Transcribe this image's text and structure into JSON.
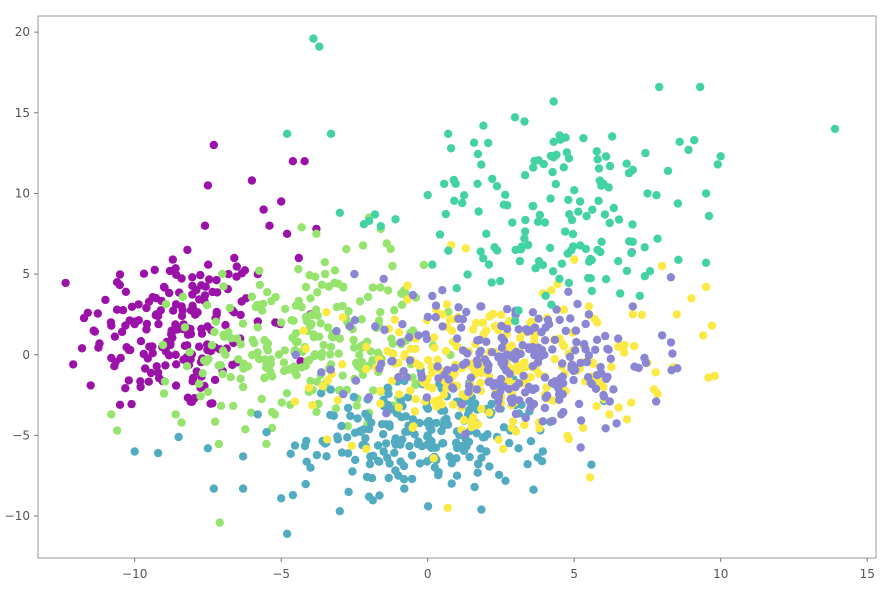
{
  "chart_data": {
    "type": "scatter",
    "title": "",
    "xlabel": "",
    "ylabel": "",
    "xlim": [
      -13.3,
      15.3
    ],
    "ylim": [
      -12.6,
      21.0
    ],
    "grid": false,
    "legend": "none",
    "x_ticks": [
      -10,
      -5,
      0,
      5,
      10,
      15
    ],
    "y_ticks": [
      -10,
      -5,
      0,
      5,
      10,
      15,
      20
    ],
    "x_tick_labels": [
      "−10",
      "−5",
      "0",
      "5",
      "10",
      "15"
    ],
    "y_tick_labels": [
      "−10",
      "−5",
      "0",
      "5",
      "10",
      "15",
      "20"
    ],
    "series": [
      {
        "color": "#9b12a8",
        "center": [
          -8.5,
          1.5
        ],
        "spread": [
          1.5,
          2.6
        ],
        "count": 200,
        "points": [
          [
            -12.1,
            -0.6
          ],
          [
            -11.8,
            0.4
          ],
          [
            -11.6,
            2.6
          ],
          [
            -11.4,
            1.5
          ],
          [
            -11.2,
            0.7
          ],
          [
            -11.0,
            3.4
          ],
          [
            -10.8,
            1.8
          ],
          [
            -10.6,
            4.5
          ],
          [
            -10.3,
            3.9
          ],
          [
            -10.2,
            0.3
          ],
          [
            -10.0,
            1.9
          ],
          [
            -9.8,
            -2.0
          ],
          [
            -9.5,
            0.5
          ],
          [
            -9.2,
            2.4
          ],
          [
            -9.0,
            4.2
          ],
          [
            -8.8,
            5.2
          ],
          [
            -8.6,
            0.0
          ],
          [
            -8.4,
            3.0
          ],
          [
            -8.2,
            6.5
          ],
          [
            -8.0,
            2.8
          ],
          [
            -7.9,
            4.0
          ],
          [
            -7.6,
            8.0
          ],
          [
            -7.5,
            10.5
          ],
          [
            -7.3,
            13.0
          ],
          [
            -7.2,
            2.5
          ],
          [
            -7.0,
            -1.0
          ],
          [
            -6.8,
            5.0
          ],
          [
            -6.6,
            6.0
          ],
          [
            -6.4,
            1.0
          ],
          [
            -6.2,
            3.5
          ],
          [
            -6.0,
            10.8
          ],
          [
            -5.8,
            5.0
          ],
          [
            -5.6,
            9.0
          ],
          [
            -5.4,
            8.0
          ],
          [
            -5.2,
            2.0
          ],
          [
            -5.0,
            9.5
          ],
          [
            -4.8,
            7.5
          ],
          [
            -4.6,
            12.0
          ],
          [
            -4.4,
            6.0
          ],
          [
            -4.2,
            12.0
          ],
          [
            -4.0,
            2.5
          ],
          [
            -3.8,
            7.8
          ],
          [
            -10.5,
            -3.1
          ],
          [
            -11.5,
            -1.9
          ],
          [
            -9.2,
            -1.1
          ],
          [
            -8.9,
            0.8
          ],
          [
            -8.1,
            1.6
          ],
          [
            -7.8,
            0.5
          ],
          [
            -9.6,
            2.9
          ],
          [
            -10.8,
            -0.2
          ]
        ]
      },
      {
        "color": "#96e46d",
        "center": [
          -4.0,
          0.5
        ],
        "spread": [
          2.0,
          2.6
        ],
        "count": 260,
        "points": [
          [
            -10.8,
            -3.7
          ],
          [
            -10.6,
            -4.7
          ],
          [
            -9.0,
            -2.4
          ],
          [
            -8.6,
            -3.7
          ],
          [
            -8.4,
            -4.2
          ],
          [
            -7.5,
            -2.3
          ],
          [
            -7.0,
            -1.2
          ],
          [
            -6.5,
            1.0
          ],
          [
            -6.0,
            3.6
          ],
          [
            -5.5,
            -0.5
          ],
          [
            -5.0,
            2.0
          ],
          [
            -4.5,
            0.8
          ],
          [
            -4.0,
            3.5
          ],
          [
            -3.5,
            5.0
          ],
          [
            -3.0,
            1.0
          ],
          [
            -2.5,
            -1.5
          ],
          [
            -2.0,
            8.5
          ],
          [
            -1.6,
            7.8
          ],
          [
            -1.2,
            5.5
          ],
          [
            -0.8,
            4.0
          ],
          [
            -0.5,
            1.5
          ],
          [
            -3.8,
            7.5
          ],
          [
            -4.3,
            7.9
          ],
          [
            -2.2,
            0.6
          ],
          [
            -6.3,
            -2.0
          ],
          [
            -5.8,
            1.7
          ],
          [
            -4.9,
            -1.0
          ],
          [
            -3.3,
            -0.6
          ],
          [
            -2.7,
            2.7
          ],
          [
            -1.4,
            6.9
          ],
          [
            -0.9,
            3.8
          ],
          [
            -6.9,
            0.0
          ],
          [
            -7.8,
            -1.8
          ],
          [
            -3.0,
            -2.2
          ],
          [
            -2.0,
            -3.6
          ]
        ]
      },
      {
        "color": "#52abc1",
        "center": [
          0.0,
          -5.0
        ],
        "spread": [
          2.0,
          1.6
        ],
        "count": 240,
        "points": [
          [
            -10.0,
            -6.0
          ],
          [
            -9.2,
            -6.1
          ],
          [
            -8.5,
            -5.1
          ],
          [
            -7.5,
            -5.8
          ],
          [
            -7.3,
            -8.3
          ],
          [
            -6.3,
            -6.3
          ],
          [
            -6.3,
            -8.3
          ],
          [
            -5.8,
            -3.7
          ],
          [
            -5.5,
            -4.8
          ],
          [
            -5.0,
            -8.9
          ],
          [
            -4.8,
            -11.1
          ],
          [
            -4.6,
            -8.7
          ],
          [
            -4.0,
            -7.0
          ],
          [
            -3.5,
            -5.5
          ],
          [
            -3.0,
            -9.7
          ],
          [
            -2.7,
            -8.5
          ],
          [
            -2.0,
            -8.8
          ],
          [
            -1.5,
            -6.0
          ],
          [
            -1.0,
            -7.5
          ],
          [
            -0.8,
            -8.3
          ],
          [
            -0.5,
            -4.0
          ],
          [
            0.0,
            -5.0
          ],
          [
            0.5,
            -5.5
          ],
          [
            1.0,
            -7.5
          ],
          [
            1.6,
            -8.2
          ],
          [
            2.0,
            -6.0
          ],
          [
            2.6,
            -4.5
          ],
          [
            3.1,
            -5.8
          ],
          [
            3.9,
            -6.6
          ],
          [
            -1.2,
            -3.4
          ]
        ]
      },
      {
        "color": "#fbe944",
        "center": [
          2.0,
          -1.0
        ],
        "spread": [
          2.6,
          2.2
        ],
        "count": 260,
        "points": [
          [
            -1.0,
            -0.5
          ],
          [
            -0.4,
            1.0
          ],
          [
            0.0,
            -1.5
          ],
          [
            0.5,
            2.5
          ],
          [
            1.0,
            0.5
          ],
          [
            1.5,
            -2.0
          ],
          [
            2.0,
            1.5
          ],
          [
            2.5,
            -3.0
          ],
          [
            3.0,
            0.0
          ],
          [
            3.5,
            2.0
          ],
          [
            4.0,
            -2.5
          ],
          [
            4.5,
            1.0
          ],
          [
            5.0,
            -1.0
          ],
          [
            5.5,
            3.0
          ],
          [
            6.0,
            -2.0
          ],
          [
            6.5,
            0.5
          ],
          [
            7.0,
            2.5
          ],
          [
            7.5,
            -0.5
          ],
          [
            8.0,
            5.5
          ],
          [
            8.5,
            2.5
          ],
          [
            9.0,
            3.5
          ],
          [
            9.4,
            1.2
          ],
          [
            9.7,
            1.8
          ],
          [
            9.5,
            4.2
          ],
          [
            6.8,
            -4.0
          ],
          [
            6.2,
            -3.7
          ],
          [
            3.8,
            -4.2
          ],
          [
            0.8,
            6.8
          ],
          [
            1.3,
            6.6
          ],
          [
            5.0,
            5.9
          ]
        ]
      },
      {
        "color": "#8b86d3",
        "center": [
          3.0,
          -0.5
        ],
        "spread": [
          2.4,
          2.0
        ],
        "count": 240,
        "points": [
          [
            -2.5,
            5.0
          ],
          [
            -1.5,
            4.7
          ],
          [
            -0.5,
            3.7
          ],
          [
            0.5,
            4.0
          ],
          [
            1.2,
            2.2
          ],
          [
            2.0,
            0.8
          ],
          [
            2.5,
            -1.5
          ],
          [
            3.0,
            -2.0
          ],
          [
            3.5,
            1.5
          ],
          [
            4.0,
            -3.3
          ],
          [
            4.4,
            2.8
          ],
          [
            5.0,
            -0.8
          ],
          [
            5.5,
            2.5
          ],
          [
            6.0,
            -2.5
          ],
          [
            6.5,
            1.0
          ],
          [
            7.0,
            3.0
          ],
          [
            7.4,
            -0.2
          ],
          [
            7.8,
            -2.9
          ],
          [
            8.3,
            4.8
          ],
          [
            8.0,
            1.2
          ],
          [
            4.8,
            3.9
          ],
          [
            2.9,
            -2.8
          ],
          [
            3.9,
            0.3
          ],
          [
            1.8,
            3.0
          ],
          [
            2.3,
            -2.5
          ]
        ]
      },
      {
        "color": "#43d2a3",
        "center": [
          4.5,
          8.5
        ],
        "spread": [
          2.5,
          3.0
        ],
        "count": 165,
        "points": [
          [
            -3.9,
            19.6
          ],
          [
            -3.7,
            19.1
          ],
          [
            -4.8,
            13.7
          ],
          [
            -3.3,
            13.7
          ],
          [
            -3.0,
            8.8
          ],
          [
            -2.0,
            8.3
          ],
          [
            -1.8,
            8.7
          ],
          [
            -1.1,
            8.4
          ],
          [
            0.0,
            9.9
          ],
          [
            0.7,
            13.7
          ],
          [
            0.8,
            12.8
          ],
          [
            1.9,
            14.2
          ],
          [
            1.7,
            10.6
          ],
          [
            2.2,
            10.9
          ],
          [
            2.6,
            9.3
          ],
          [
            3.0,
            6.5
          ],
          [
            3.3,
            7.2
          ],
          [
            3.6,
            11.6
          ],
          [
            4.0,
            8.2
          ],
          [
            4.3,
            15.7
          ],
          [
            4.3,
            13.2
          ],
          [
            4.5,
            13.6
          ],
          [
            4.8,
            9.6
          ],
          [
            5.0,
            10.2
          ],
          [
            5.2,
            9.5
          ],
          [
            6.0,
            10.6
          ],
          [
            6.5,
            5.8
          ],
          [
            7.0,
            7.0
          ],
          [
            7.5,
            10.0
          ],
          [
            7.9,
            16.6
          ],
          [
            8.2,
            11.4
          ],
          [
            8.6,
            13.2
          ],
          [
            8.9,
            12.7
          ],
          [
            9.1,
            13.3
          ],
          [
            9.3,
            16.6
          ],
          [
            9.5,
            10.0
          ],
          [
            9.6,
            8.6
          ],
          [
            10.0,
            12.3
          ],
          [
            9.9,
            11.8
          ],
          [
            13.9,
            14.0
          ],
          [
            9.5,
            5.7
          ],
          [
            6.8,
            5.2
          ],
          [
            5.8,
            6.5
          ],
          [
            3.8,
            5.8
          ],
          [
            2.0,
            7.5
          ]
        ]
      }
    ]
  }
}
